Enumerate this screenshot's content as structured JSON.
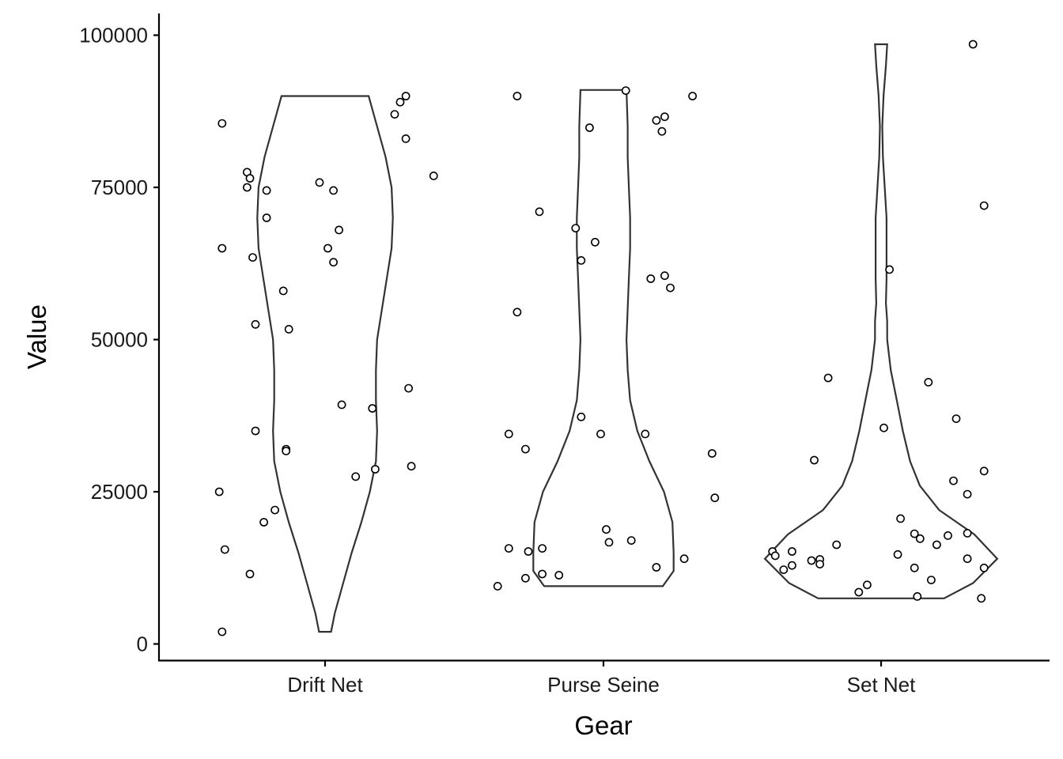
{
  "chart_data": {
    "type": "violin",
    "xlabel": "Gear",
    "ylabel": "Value",
    "categories": [
      "Drift Net",
      "Purse Seine",
      "Set Net"
    ],
    "ylim": [
      -2600,
      103500
    ],
    "yticks": [
      0,
      25000,
      50000,
      75000,
      100000
    ],
    "grid": false,
    "legend": "none",
    "violins": [
      {
        "category": "Drift Net",
        "min": 2000,
        "max": 90000,
        "profile": [
          [
            2000,
            0.05
          ],
          [
            5000,
            0.08
          ],
          [
            10000,
            0.15
          ],
          [
            15000,
            0.22
          ],
          [
            20000,
            0.3
          ],
          [
            25000,
            0.37
          ],
          [
            30000,
            0.42
          ],
          [
            35000,
            0.43
          ],
          [
            40000,
            0.42
          ],
          [
            45000,
            0.42
          ],
          [
            50000,
            0.43
          ],
          [
            55000,
            0.47
          ],
          [
            60000,
            0.51
          ],
          [
            65000,
            0.55
          ],
          [
            70000,
            0.56
          ],
          [
            75000,
            0.55
          ],
          [
            80000,
            0.5
          ],
          [
            85000,
            0.43
          ],
          [
            90000,
            0.36
          ]
        ]
      },
      {
        "category": "Purse Seine",
        "min": 9500,
        "max": 91000,
        "profile": [
          [
            9500,
            0.49
          ],
          [
            12000,
            0.58
          ],
          [
            15000,
            0.58
          ],
          [
            20000,
            0.57
          ],
          [
            25000,
            0.5
          ],
          [
            30000,
            0.38
          ],
          [
            35000,
            0.28
          ],
          [
            40000,
            0.22
          ],
          [
            45000,
            0.2
          ],
          [
            50000,
            0.19
          ],
          [
            55000,
            0.2
          ],
          [
            60000,
            0.21
          ],
          [
            65000,
            0.22
          ],
          [
            70000,
            0.22
          ],
          [
            75000,
            0.21
          ],
          [
            80000,
            0.2
          ],
          [
            85000,
            0.2
          ],
          [
            91000,
            0.19
          ]
        ]
      },
      {
        "category": "Set Net",
        "min": 7500,
        "max": 98500,
        "profile": [
          [
            7500,
            0.52
          ],
          [
            10000,
            0.76
          ],
          [
            14000,
            0.96
          ],
          [
            18000,
            0.77
          ],
          [
            22000,
            0.48
          ],
          [
            26000,
            0.32
          ],
          [
            30000,
            0.24
          ],
          [
            35000,
            0.18
          ],
          [
            40000,
            0.13
          ],
          [
            45000,
            0.08
          ],
          [
            50000,
            0.05
          ],
          [
            53000,
            0.05
          ],
          [
            56000,
            0.04
          ],
          [
            60000,
            0.045
          ],
          [
            65000,
            0.045
          ],
          [
            70000,
            0.045
          ],
          [
            75000,
            0.03
          ],
          [
            80000,
            0.015
          ],
          [
            85000,
            0.01
          ],
          [
            90000,
            0.02
          ],
          [
            95000,
            0.04
          ],
          [
            98500,
            0.05
          ]
        ]
      }
    ],
    "points": {
      "Drift Net": [
        [
          -0.37,
          85500
        ],
        [
          -0.28,
          77500
        ],
        [
          -0.27,
          76500
        ],
        [
          -0.28,
          75000
        ],
        [
          -0.21,
          74500
        ],
        [
          -0.21,
          70000
        ],
        [
          -0.37,
          65000
        ],
        [
          -0.26,
          63500
        ],
        [
          -0.15,
          58000
        ],
        [
          -0.25,
          52500
        ],
        [
          -0.13,
          51700
        ],
        [
          -0.25,
          35000
        ],
        [
          -0.14,
          32000
        ],
        [
          -0.14,
          31700
        ],
        [
          -0.38,
          25000
        ],
        [
          -0.18,
          22000
        ],
        [
          -0.22,
          20000
        ],
        [
          -0.36,
          15500
        ],
        [
          -0.27,
          11500
        ],
        [
          -0.37,
          2000
        ],
        [
          -0.02,
          75800
        ],
        [
          0.03,
          74500
        ],
        [
          0.05,
          68000
        ],
        [
          0.01,
          65000
        ],
        [
          0.03,
          62700
        ],
        [
          0.06,
          39300
        ],
        [
          0.11,
          27500
        ],
        [
          0.17,
          38700
        ],
        [
          0.18,
          28700
        ],
        [
          0.25,
          87000
        ],
        [
          0.27,
          89000
        ],
        [
          0.29,
          90000
        ],
        [
          0.29,
          83000
        ],
        [
          0.3,
          42000
        ],
        [
          0.31,
          29200
        ],
        [
          0.39,
          76900
        ]
      ],
      "Purse Seine": [
        [
          -0.31,
          90000
        ],
        [
          -0.23,
          71000
        ],
        [
          -0.31,
          54500
        ],
        [
          -0.34,
          34500
        ],
        [
          -0.28,
          32000
        ],
        [
          -0.34,
          15700
        ],
        [
          -0.27,
          15200
        ],
        [
          -0.22,
          15700
        ],
        [
          -0.38,
          9500
        ],
        [
          -0.28,
          10800
        ],
        [
          -0.22,
          11500
        ],
        [
          -0.16,
          11300
        ],
        [
          -0.1,
          68300
        ],
        [
          -0.08,
          63000
        ],
        [
          -0.05,
          84800
        ],
        [
          -0.03,
          66000
        ],
        [
          -0.08,
          37300
        ],
        [
          -0.01,
          34500
        ],
        [
          0.01,
          18800
        ],
        [
          0.02,
          16700
        ],
        [
          0.08,
          90900
        ],
        [
          0.1,
          17000
        ],
        [
          0.15,
          34500
        ],
        [
          0.17,
          60000
        ],
        [
          0.19,
          86000
        ],
        [
          0.21,
          84200
        ],
        [
          0.22,
          86600
        ],
        [
          0.22,
          60500
        ],
        [
          0.24,
          58500
        ],
        [
          0.19,
          12600
        ],
        [
          0.32,
          90000
        ],
        [
          0.29,
          14000
        ],
        [
          0.39,
          31300
        ],
        [
          0.4,
          24000
        ]
      ],
      "Set Net": [
        [
          -0.39,
          15200
        ],
        [
          -0.38,
          14500
        ],
        [
          -0.35,
          12200
        ],
        [
          -0.32,
          12900
        ],
        [
          -0.32,
          15200
        ],
        [
          -0.25,
          13700
        ],
        [
          -0.22,
          13900
        ],
        [
          -0.22,
          13100
        ],
        [
          -0.24,
          30200
        ],
        [
          -0.19,
          43700
        ],
        [
          -0.16,
          16300
        ],
        [
          -0.08,
          8500
        ],
        [
          -0.05,
          9700
        ],
        [
          0.01,
          35500
        ],
        [
          0.03,
          61500
        ],
        [
          0.07,
          20600
        ],
        [
          0.06,
          14700
        ],
        [
          0.12,
          18100
        ],
        [
          0.14,
          17300
        ],
        [
          0.12,
          12500
        ],
        [
          0.17,
          43000
        ],
        [
          0.13,
          7800
        ],
        [
          0.18,
          10500
        ],
        [
          0.2,
          16300
        ],
        [
          0.24,
          17800
        ],
        [
          0.26,
          26800
        ],
        [
          0.27,
          37000
        ],
        [
          0.31,
          24600
        ],
        [
          0.31,
          18200
        ],
        [
          0.31,
          14000
        ],
        [
          0.33,
          98500
        ],
        [
          0.37,
          72000
        ],
        [
          0.37,
          28400
        ],
        [
          0.37,
          12500
        ],
        [
          0.36,
          7500
        ]
      ]
    }
  }
}
